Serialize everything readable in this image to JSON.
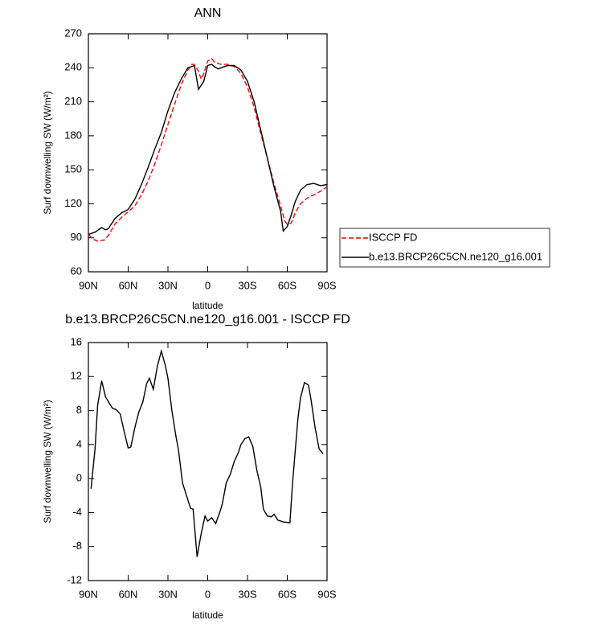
{
  "chart_data": [
    {
      "type": "line",
      "title": "ANN",
      "x_label": "latitude",
      "y_label": "Surf downwelling SW (W/m²)",
      "xlim": [
        90,
        -90
      ],
      "xticks": [
        {
          "value": 90,
          "label": "90N"
        },
        {
          "value": 60,
          "label": "60N"
        },
        {
          "value": 30,
          "label": "30N"
        },
        0,
        {
          "value": -30,
          "label": "30S"
        },
        {
          "value": -60,
          "label": "60S"
        },
        {
          "value": -90,
          "label": "90S"
        }
      ],
      "ylim": [
        60,
        270
      ],
      "yticks": [
        60,
        90,
        120,
        150,
        180,
        210,
        240,
        270
      ],
      "legend": "right",
      "series": [
        {
          "name": "ISCCP FD",
          "color": "#ff0000",
          "linestyle": "dashed",
          "x": [
            90,
            87,
            83,
            78,
            75,
            70,
            65,
            60,
            55,
            50,
            45,
            40,
            35,
            30,
            25,
            20,
            15,
            12,
            10,
            7,
            5,
            3,
            0,
            -3,
            -5,
            -10,
            -15,
            -20,
            -25,
            -30,
            -35,
            -40,
            -45,
            -50,
            -55,
            -58,
            -60,
            -63,
            -66,
            -70,
            -75,
            -80,
            -85,
            -90
          ],
          "values": [
            93,
            89,
            87,
            88,
            92,
            102,
            108,
            113,
            118,
            128,
            140,
            155,
            172,
            190,
            208,
            225,
            238,
            243,
            243,
            237,
            230,
            235,
            246,
            248,
            245,
            243,
            243,
            241,
            235,
            223,
            205,
            182,
            160,
            138,
            118,
            105,
            102,
            103,
            112,
            120,
            125,
            128,
            131,
            135
          ]
        },
        {
          "name": "b.e13.BRCP26C5CN.ne120_g16.001",
          "color": "#000000",
          "linestyle": "solid",
          "x": [
            90,
            85,
            80,
            77,
            75,
            70,
            65,
            60,
            55,
            50,
            45,
            40,
            35,
            30,
            25,
            20,
            15,
            10,
            7,
            3,
            0,
            -3,
            -5,
            -8,
            -10,
            -15,
            -20,
            -25,
            -30,
            -35,
            -40,
            -45,
            -50,
            -55,
            -57,
            -60,
            -63,
            -66,
            -70,
            -75,
            -80,
            -85,
            -90
          ],
          "values": [
            93,
            95,
            99,
            97,
            98,
            107,
            112,
            115,
            124,
            137,
            152,
            168,
            183,
            202,
            218,
            230,
            240,
            242,
            221,
            228,
            242,
            243,
            241,
            239,
            240,
            242,
            242,
            238,
            228,
            210,
            185,
            160,
            135,
            113,
            96,
            100,
            110,
            122,
            132,
            137,
            138,
            136,
            137
          ]
        }
      ]
    },
    {
      "type": "line",
      "title": "b.e13.BRCP26C5CN.ne120_g16.001 - ISCCP FD",
      "x_label": "latitude",
      "y_label": "Surf downwelling SW (W/m²)",
      "xlim": [
        90,
        -90
      ],
      "xticks": [
        {
          "value": 90,
          "label": "90N"
        },
        {
          "value": 60,
          "label": "60N"
        },
        {
          "value": 30,
          "label": "30N"
        },
        0,
        {
          "value": -30,
          "label": "30S"
        },
        {
          "value": -60,
          "label": "60S"
        },
        {
          "value": -90,
          "label": "90S"
        }
      ],
      "ylim": [
        -12,
        16
      ],
      "yticks": [
        -12,
        -8,
        -4,
        0,
        4,
        8,
        12,
        16
      ],
      "series": [
        {
          "color": "#000000",
          "linestyle": "solid",
          "x": [
            88,
            85,
            83,
            80,
            77,
            72,
            69,
            66,
            63,
            60,
            58,
            55,
            52,
            49,
            46,
            44,
            41,
            38,
            35,
            32,
            30,
            27,
            24,
            22,
            19,
            16,
            13,
            11,
            8,
            5,
            2,
            0,
            -3,
            -6,
            -9,
            -11,
            -14,
            -17,
            -20,
            -23,
            -25,
            -28,
            -31,
            -34,
            -37,
            -40,
            -42,
            -45,
            -48,
            -50,
            -53,
            -57,
            -62,
            -64,
            -68,
            -70,
            -73,
            -76,
            -78,
            -81,
            -84,
            -87
          ],
          "values": [
            -1.2,
            3.5,
            8.6,
            11.5,
            9.6,
            8.3,
            8.1,
            7.6,
            5.5,
            3.6,
            3.7,
            6,
            7.8,
            9,
            11.2,
            11.8,
            10.5,
            13.2,
            15,
            13.3,
            11.8,
            8,
            5,
            3.3,
            -0.5,
            -2,
            -3.5,
            -3.6,
            -9.2,
            -6.5,
            -4.4,
            -5,
            -4.6,
            -5.3,
            -4,
            -3,
            -0.5,
            0.5,
            2,
            3,
            4,
            4.7,
            4.9,
            3.8,
            1,
            -1,
            -3.6,
            -4.4,
            -4.5,
            -4.2,
            -4.9,
            -5.1,
            -5.2,
            -0.5,
            7,
            9.5,
            11.3,
            11,
            9.2,
            6,
            3.5,
            2.9
          ]
        }
      ]
    }
  ]
}
